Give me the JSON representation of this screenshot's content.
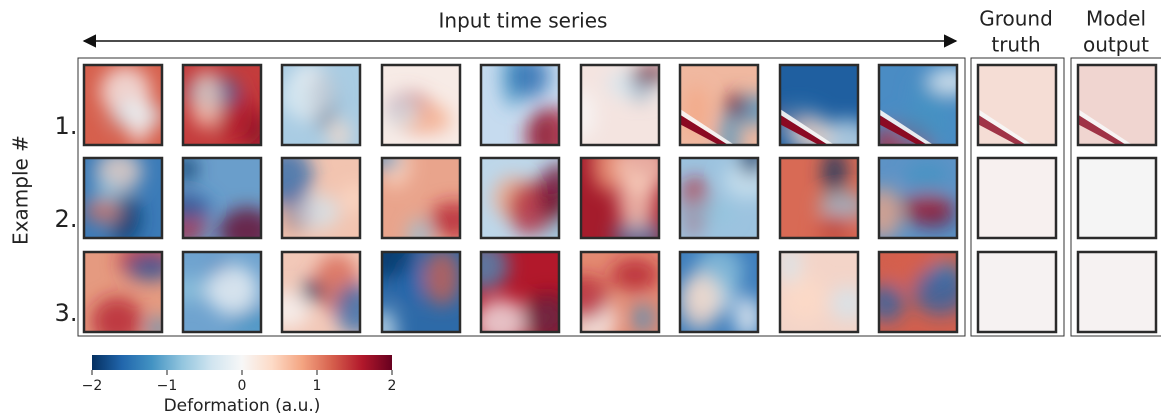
{
  "header": {
    "title": "Input time series",
    "ground_truth": [
      "Ground",
      "truth"
    ],
    "model_output": [
      "Model",
      "output"
    ]
  },
  "y_label": "Example #",
  "rows": [
    "1.",
    "2.",
    "3."
  ],
  "colorbar": {
    "label": "Deformation (a.u.)",
    "lim": [
      -2,
      2
    ],
    "ticks": [
      {
        "value": -2,
        "label": "−2"
      },
      {
        "value": -1,
        "label": "−1"
      },
      0,
      1,
      2
    ]
  }
}
